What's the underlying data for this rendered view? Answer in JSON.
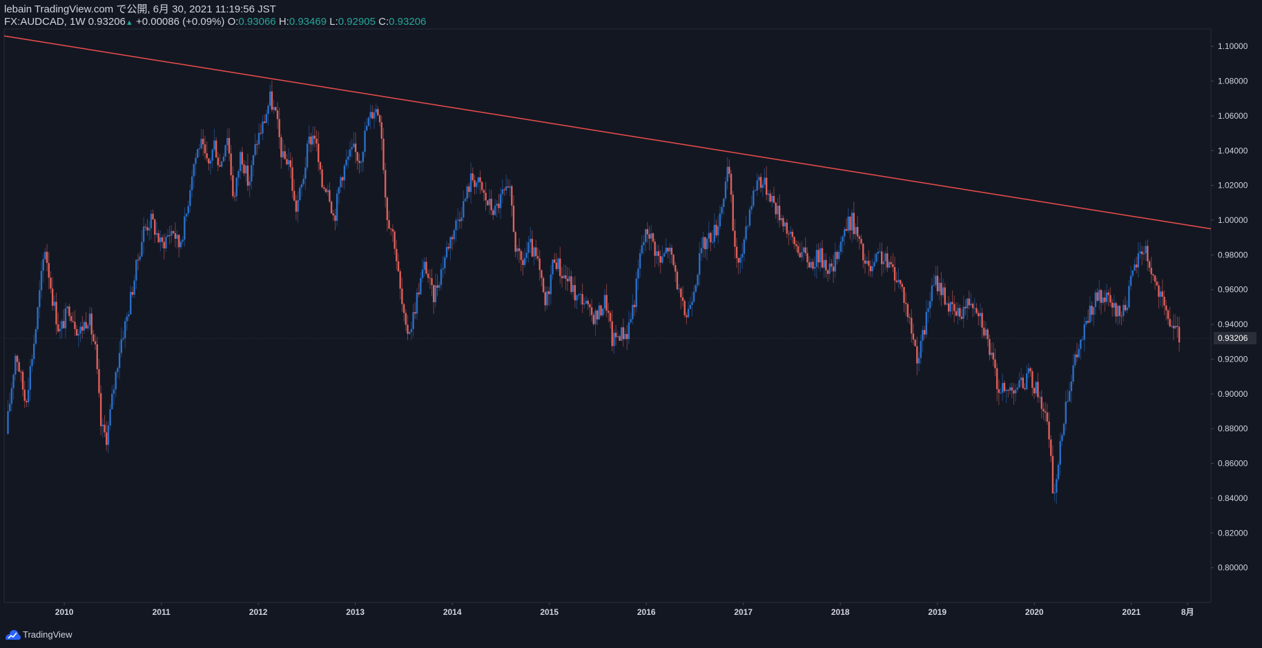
{
  "header": {
    "publish_line": "lebain TradingView.com で公開, 6月 30, 2021 11:19:56 JST",
    "symbol": "FX:AUDCAD, 1W 0.93206",
    "change_arrow": "▲",
    "change": "+0.00086 (+0.09%)",
    "o_label": "O:",
    "o_value": "0.93066",
    "h_label": "H:",
    "h_value": "0.93469",
    "l_label": "L:",
    "l_value": "0.92905",
    "c_label": "C:",
    "c_value": "0.93206"
  },
  "footer": {
    "brand": "TradingView",
    "logo_icon": "tradingview-logo-icon"
  },
  "colors": {
    "background": "#131722",
    "up": "#2a6fc9",
    "down": "#e0605a",
    "trendline": "#e24b4a",
    "axis_text": "#d1d4dc",
    "current_price_label_bg": "#2a2e39",
    "value_green": "#26a69a"
  },
  "chart_data": {
    "type": "candlestick",
    "symbol": "FX:AUDCAD",
    "interval": "1W",
    "ylim": [
      0.78,
      1.11
    ],
    "y_ticks": [
      "0.80000",
      "0.82000",
      "0.84000",
      "0.86000",
      "0.88000",
      "0.90000",
      "0.92000",
      "0.94000",
      "0.96000",
      "0.98000",
      "1.00000",
      "1.02000",
      "1.04000",
      "1.06000",
      "1.08000",
      "1.10000"
    ],
    "x_ticks": [
      "2010",
      "2011",
      "2012",
      "2013",
      "2014",
      "2015",
      "2016",
      "2017",
      "2018",
      "2019",
      "2020",
      "2021",
      "8月"
    ],
    "x_range": [
      2009.38,
      2021.82
    ],
    "current_price": "0.93206",
    "series": [
      {
        "points": [
          [
            2009.4,
            0.877
          ],
          [
            2009.5,
            0.925
          ],
          [
            2009.6,
            0.895
          ],
          [
            2009.7,
            0.935
          ],
          [
            2009.8,
            0.985
          ],
          [
            2009.88,
            0.955
          ],
          [
            2009.95,
            0.935
          ],
          [
            2010.05,
            0.95
          ],
          [
            2010.15,
            0.935
          ],
          [
            2010.25,
            0.945
          ],
          [
            2010.32,
            0.925
          ],
          [
            2010.38,
            0.88
          ],
          [
            2010.44,
            0.875
          ],
          [
            2010.5,
            0.9
          ],
          [
            2010.58,
            0.93
          ],
          [
            2010.65,
            0.945
          ],
          [
            2010.75,
            0.975
          ],
          [
            2010.82,
            0.995
          ],
          [
            2010.9,
            1.0
          ],
          [
            2011.0,
            0.985
          ],
          [
            2011.05,
            0.99
          ],
          [
            2011.12,
            0.995
          ],
          [
            2011.18,
            0.985
          ],
          [
            2011.25,
            1.0
          ],
          [
            2011.32,
            1.03
          ],
          [
            2011.4,
            1.045
          ],
          [
            2011.48,
            1.03
          ],
          [
            2011.55,
            1.045
          ],
          [
            2011.6,
            1.03
          ],
          [
            2011.68,
            1.05
          ],
          [
            2011.75,
            1.01
          ],
          [
            2011.82,
            1.04
          ],
          [
            2011.9,
            1.02
          ],
          [
            2011.98,
            1.045
          ],
          [
            2012.05,
            1.055
          ],
          [
            2012.12,
            1.07
          ],
          [
            2012.18,
            1.06
          ],
          [
            2012.25,
            1.035
          ],
          [
            2012.32,
            1.035
          ],
          [
            2012.38,
            1.005
          ],
          [
            2012.45,
            1.02
          ],
          [
            2012.52,
            1.045
          ],
          [
            2012.58,
            1.05
          ],
          [
            2012.65,
            1.02
          ],
          [
            2012.72,
            1.02
          ],
          [
            2012.78,
            1.0
          ],
          [
            2012.85,
            1.025
          ],
          [
            2012.92,
            1.035
          ],
          [
            2012.98,
            1.04
          ],
          [
            2013.05,
            1.035
          ],
          [
            2013.12,
            1.055
          ],
          [
            2013.2,
            1.065
          ],
          [
            2013.26,
            1.06
          ],
          [
            2013.32,
            1.005
          ],
          [
            2013.4,
            0.99
          ],
          [
            2013.46,
            0.96
          ],
          [
            2013.52,
            0.935
          ],
          [
            2013.58,
            0.94
          ],
          [
            2013.65,
            0.96
          ],
          [
            2013.72,
            0.975
          ],
          [
            2013.8,
            0.955
          ],
          [
            2013.88,
            0.97
          ],
          [
            2013.95,
            0.985
          ],
          [
            2014.05,
            1.0
          ],
          [
            2014.12,
            1.01
          ],
          [
            2014.2,
            1.025
          ],
          [
            2014.28,
            1.02
          ],
          [
            2014.36,
            1.01
          ],
          [
            2014.44,
            1.005
          ],
          [
            2014.52,
            1.015
          ],
          [
            2014.6,
            1.015
          ],
          [
            2014.66,
            0.98
          ],
          [
            2014.72,
            0.975
          ],
          [
            2014.8,
            0.985
          ],
          [
            2014.88,
            0.975
          ],
          [
            2014.96,
            0.95
          ],
          [
            2015.05,
            0.98
          ],
          [
            2015.12,
            0.97
          ],
          [
            2015.2,
            0.965
          ],
          [
            2015.28,
            0.955
          ],
          [
            2015.35,
            0.955
          ],
          [
            2015.42,
            0.945
          ],
          [
            2015.5,
            0.945
          ],
          [
            2015.58,
            0.955
          ],
          [
            2015.65,
            0.93
          ],
          [
            2015.72,
            0.935
          ],
          [
            2015.8,
            0.935
          ],
          [
            2015.88,
            0.955
          ],
          [
            2015.95,
            0.985
          ],
          [
            2016.02,
            0.995
          ],
          [
            2016.08,
            0.985
          ],
          [
            2016.15,
            0.975
          ],
          [
            2016.22,
            0.985
          ],
          [
            2016.3,
            0.97
          ],
          [
            2016.36,
            0.95
          ],
          [
            2016.42,
            0.945
          ],
          [
            2016.5,
            0.965
          ],
          [
            2016.58,
            0.985
          ],
          [
            2016.65,
            0.99
          ],
          [
            2016.72,
            0.995
          ],
          [
            2016.78,
            1.01
          ],
          [
            2016.85,
            1.03
          ],
          [
            2016.9,
            0.99
          ],
          [
            2016.96,
            0.97
          ],
          [
            2017.02,
            0.995
          ],
          [
            2017.08,
            1.01
          ],
          [
            2017.15,
            1.025
          ],
          [
            2017.22,
            1.02
          ],
          [
            2017.28,
            1.015
          ],
          [
            2017.35,
            1.005
          ],
          [
            2017.42,
            1.0
          ],
          [
            2017.48,
            0.99
          ],
          [
            2017.55,
            0.985
          ],
          [
            2017.62,
            0.98
          ],
          [
            2017.7,
            0.975
          ],
          [
            2017.78,
            0.98
          ],
          [
            2017.85,
            0.975
          ],
          [
            2017.92,
            0.97
          ],
          [
            2017.98,
            0.985
          ],
          [
            2018.05,
            0.995
          ],
          [
            2018.12,
            1.0
          ],
          [
            2018.18,
            0.99
          ],
          [
            2018.25,
            0.975
          ],
          [
            2018.32,
            0.97
          ],
          [
            2018.4,
            0.98
          ],
          [
            2018.48,
            0.975
          ],
          [
            2018.56,
            0.97
          ],
          [
            2018.64,
            0.96
          ],
          [
            2018.72,
            0.94
          ],
          [
            2018.8,
            0.92
          ],
          [
            2018.86,
            0.935
          ],
          [
            2018.92,
            0.955
          ],
          [
            2018.98,
            0.965
          ],
          [
            2019.05,
            0.96
          ],
          [
            2019.12,
            0.95
          ],
          [
            2019.2,
            0.945
          ],
          [
            2019.28,
            0.95
          ],
          [
            2019.35,
            0.955
          ],
          [
            2019.42,
            0.95
          ],
          [
            2019.5,
            0.935
          ],
          [
            2019.56,
            0.92
          ],
          [
            2019.62,
            0.905
          ],
          [
            2019.7,
            0.9
          ],
          [
            2019.78,
            0.905
          ],
          [
            2019.86,
            0.905
          ],
          [
            2019.94,
            0.91
          ],
          [
            2020.0,
            0.905
          ],
          [
            2020.08,
            0.895
          ],
          [
            2020.14,
            0.88
          ],
          [
            2020.2,
            0.84
          ],
          [
            2020.26,
            0.865
          ],
          [
            2020.32,
            0.895
          ],
          [
            2020.4,
            0.915
          ],
          [
            2020.48,
            0.93
          ],
          [
            2020.56,
            0.945
          ],
          [
            2020.64,
            0.955
          ],
          [
            2020.72,
            0.955
          ],
          [
            2020.8,
            0.95
          ],
          [
            2020.88,
            0.945
          ],
          [
            2020.96,
            0.955
          ],
          [
            2021.02,
            0.97
          ],
          [
            2021.08,
            0.98
          ],
          [
            2021.14,
            0.985
          ],
          [
            2021.18,
            0.975
          ],
          [
            2021.24,
            0.965
          ],
          [
            2021.3,
            0.955
          ],
          [
            2021.36,
            0.945
          ],
          [
            2021.42,
            0.94
          ],
          [
            2021.46,
            0.935
          ],
          [
            2021.5,
            0.932
          ]
        ]
      }
    ],
    "trendline": {
      "from": [
        2009.38,
        1.106
      ],
      "to": [
        2021.82,
        0.995
      ]
    }
  }
}
